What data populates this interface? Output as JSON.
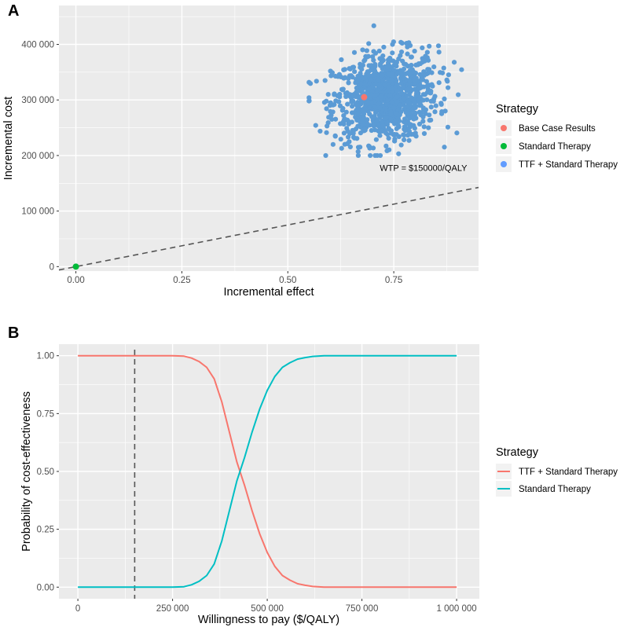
{
  "chart_data": [
    {
      "panel": "A",
      "type": "scatter",
      "xlabel": "Incremental effect",
      "ylabel": "Incremental cost",
      "xlim": [
        -0.04,
        0.95
      ],
      "ylim": [
        -8000,
        470000
      ],
      "xticks": [
        0.0,
        0.25,
        0.5,
        0.75
      ],
      "xtick_labels": [
        "0.00",
        "0.25",
        "0.50",
        "0.75"
      ],
      "yticks": [
        0,
        100000,
        200000,
        300000,
        400000
      ],
      "ytick_labels": [
        "0",
        "100 000",
        "200 000",
        "300 000",
        "400 000"
      ],
      "legend": {
        "title": "Strategy",
        "entries": [
          {
            "label": "Base Case Results",
            "color": "#f8766d"
          },
          {
            "label": "Standard Therapy",
            "color": "#00ba38"
          },
          {
            "label": "TTF + Standard Therapy",
            "color": "#619cff"
          }
        ],
        "placement": "right"
      },
      "series": [
        {
          "name": "TTF + Standard Therapy",
          "color": "#5b9bd5",
          "n_points": 1000,
          "x_mean": 0.73,
          "x_sd": 0.062,
          "x_range": [
            0.55,
            0.91
          ],
          "y_mean": 305000,
          "y_sd": 40000,
          "y_range": [
            200000,
            455000
          ]
        },
        {
          "name": "Base Case Results",
          "color": "#f8766d",
          "points": [
            [
              0.68,
              305000
            ]
          ]
        },
        {
          "name": "Standard Therapy",
          "color": "#00ba38",
          "points": [
            [
              0.0,
              0
            ]
          ]
        }
      ],
      "threshold_line": {
        "slope": 150000,
        "intercept": 0,
        "label": "WTP = $150000/QALY",
        "label_at": [
          0.82,
          172000
        ]
      }
    },
    {
      "panel": "B",
      "type": "line",
      "xlabel": "Willingness to pay ($/QALY)",
      "ylabel": "Probability of cost-effectiveness",
      "xlim": [
        -50000,
        1060000
      ],
      "ylim": [
        -0.05,
        1.05
      ],
      "xticks": [
        0,
        250000,
        500000,
        750000,
        1000000
      ],
      "xtick_labels": [
        "0",
        "250 000",
        "500 000",
        "750 000",
        "1 000 000"
      ],
      "yticks": [
        0,
        0.25,
        0.5,
        0.75,
        1.0
      ],
      "ytick_labels": [
        "0.00",
        "0.25",
        "0.50",
        "0.75",
        "1.00"
      ],
      "legend": {
        "title": "Strategy",
        "entries": [
          {
            "label": "TTF + Standard Therapy",
            "color": "#f8766d"
          },
          {
            "label": "Standard Therapy",
            "color": "#00bfc4"
          }
        ],
        "placement": "right"
      },
      "x": [
        0,
        250000,
        280000,
        300000,
        320000,
        340000,
        360000,
        380000,
        400000,
        420000,
        440000,
        460000,
        480000,
        500000,
        520000,
        540000,
        560000,
        580000,
        600000,
        620000,
        650000,
        700000,
        1000000
      ],
      "series": [
        {
          "name": "TTF + Standard Therapy",
          "color": "#f8766d",
          "values": [
            1.0,
            1.0,
            0.998,
            0.99,
            0.975,
            0.95,
            0.9,
            0.8,
            0.67,
            0.54,
            0.44,
            0.33,
            0.23,
            0.15,
            0.09,
            0.05,
            0.03,
            0.015,
            0.008,
            0.003,
            0.0,
            0.0,
            0.0
          ]
        },
        {
          "name": "Standard Therapy",
          "color": "#00bfc4",
          "values": [
            0.0,
            0.0,
            0.002,
            0.01,
            0.025,
            0.05,
            0.1,
            0.2,
            0.33,
            0.46,
            0.56,
            0.67,
            0.77,
            0.85,
            0.91,
            0.95,
            0.97,
            0.985,
            0.992,
            0.997,
            1.0,
            1.0,
            1.0
          ]
        }
      ],
      "reference_line": {
        "x": 150000,
        "style": "dashed"
      }
    }
  ]
}
